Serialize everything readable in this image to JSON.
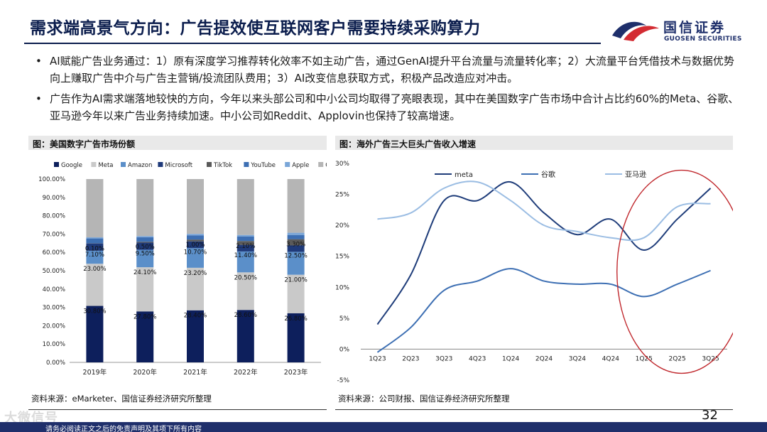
{
  "header": {
    "title": "需求端高景气方向：广告提效使互联网客户需要持续采购算力",
    "logo_cn": "国信证券",
    "logo_en": "GUOSEN SECURITIES"
  },
  "bullets": [
    "AI赋能广告业务通过：1）原有深度学习推荐转化效率不如主动广告，通过GenAI提升平台流量与流量转化率；2）大流量平台凭借技术与数据优势向上赚取广告中介与广告主营销/投流团队费用；3）AI改变信息获取方式，积极产品改造应对冲击。",
    "广告作为AI需求端落地较快的方向，今年以来头部公司和中小公司均取得了亮眼表现，其中在美国数字广告市场中合计占比约60%的Meta、谷歌、亚马逊今年以来广告业务持续加速。中小公司如Reddit、Applovin也保持了较高增速。"
  ],
  "bullet_marker": "•",
  "left_panel": {
    "title": "图：美国数字广告市场份额",
    "source": "资料来源：eMarketer、国信证券经济研究所整理"
  },
  "right_panel": {
    "title": "图：海外广告三大巨头广告收入增速",
    "source": "资料来源：公司财报、国信证券经济研究所整理"
  },
  "footer": {
    "page_number": "32",
    "disclaimer": "请务必阅读正文之后的免责声明及其项下所有内容",
    "watermark": "大微信号"
  },
  "chart_data": [
    {
      "type": "bar",
      "stacked": true,
      "title": "美国数字广告市场份额",
      "categories": [
        "2019年",
        "2020年",
        "2021年",
        "2022年",
        "2023年"
      ],
      "ylim": [
        0,
        100
      ],
      "yticks": [
        "0.00%",
        "10.00%",
        "20.00%",
        "30.00%",
        "40.00%",
        "50.00%",
        "60.00%",
        "70.00%",
        "80.00%",
        "90.00%",
        "100.00%"
      ],
      "legend": "top",
      "series": [
        {
          "name": "Google",
          "color": "#0d1f5c",
          "values": [
            30.8,
            27.8,
            28.4,
            28.6,
            26.8
          ],
          "labels": [
            "30.80%",
            "27.80%",
            "28.40%",
            "28.60%",
            "26.80%"
          ]
        },
        {
          "name": "Meta",
          "color": "#c9c9c9",
          "values": [
            23.0,
            24.1,
            23.2,
            20.5,
            21.0
          ],
          "labels": [
            "23.00%",
            "24.10%",
            "23.20%",
            "20.50%",
            "21.00%"
          ]
        },
        {
          "name": "Amazon",
          "color": "#5b8fc9",
          "values": [
            7.1,
            9.5,
            10.7,
            11.4,
            12.5
          ],
          "labels": [
            "7.10%",
            "9.50%",
            "10.70%",
            "11.40%",
            "12.50%"
          ]
        },
        {
          "name": "Microsoft",
          "color": "#1f3a7a",
          "values": [
            4.0,
            3.9,
            3.7,
            3.6,
            3.6
          ],
          "labels": []
        },
        {
          "name": "TikTok",
          "color": "#5a5a5a",
          "values": [
            0.1,
            0.5,
            1.0,
            2.1,
            3.3
          ],
          "labels": [
            "0.10%",
            "0.50%",
            "1.00%",
            "2.10%",
            "3.30%"
          ]
        },
        {
          "name": "YouTube",
          "color": "#3d6fb3",
          "values": [
            2.6,
            2.4,
            2.3,
            2.4,
            2.3
          ],
          "labels": []
        },
        {
          "name": "Apple",
          "color": "#7aa6d8",
          "values": [
            0.6,
            0.7,
            0.8,
            0.9,
            1.2
          ],
          "labels": []
        },
        {
          "name": "Other",
          "color": "#b5b5b5",
          "values": [
            31.8,
            31.1,
            29.9,
            30.5,
            29.3
          ],
          "labels": []
        }
      ]
    },
    {
      "type": "line",
      "title": "海外广告三大巨头广告收入增速",
      "x": [
        "1Q23",
        "2Q23",
        "3Q23",
        "4Q23",
        "1Q24",
        "2Q24",
        "3Q24",
        "4Q24",
        "1Q25",
        "2Q25",
        "3Q25"
      ],
      "ylim": [
        -5,
        30
      ],
      "yticks": [
        "-5%",
        "0%",
        "5%",
        "10%",
        "15%",
        "20%",
        "25%",
        "30%"
      ],
      "legend": "top",
      "annotation": "red ellipse highlighting 1Q25-3Q25",
      "annotation_color": "#c0282d",
      "series": [
        {
          "name": "meta",
          "color": "#1f3d7a",
          "values": [
            4.0,
            12.0,
            24.0,
            24.0,
            27.0,
            22.0,
            18.5,
            21.0,
            16.0,
            21.0,
            26.0
          ]
        },
        {
          "name": "谷歌",
          "color": "#3d6fb3",
          "values": [
            -0.5,
            3.5,
            9.5,
            11.0,
            13.0,
            11.0,
            10.5,
            10.5,
            8.5,
            10.5,
            12.7
          ]
        },
        {
          "name": "亚马逊",
          "color": "#9bbde3",
          "values": [
            21.0,
            22.0,
            26.0,
            27.0,
            24.0,
            20.0,
            19.0,
            18.0,
            18.0,
            23.0,
            23.5
          ]
        }
      ]
    }
  ]
}
